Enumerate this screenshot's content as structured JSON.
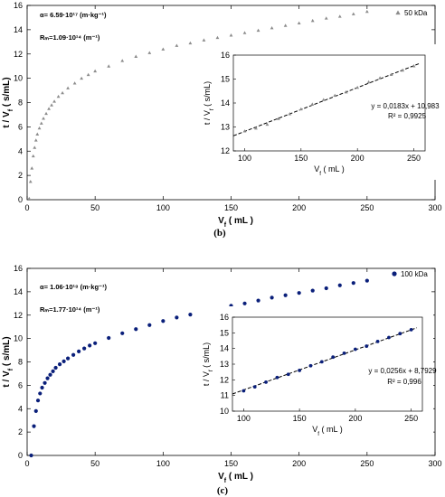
{
  "chart_data": [
    {
      "type": "scatter",
      "panel_label": "(b)",
      "color": "#8c8c8c",
      "marker": "triangle",
      "xlabel": "Vf ( mL )",
      "ylabel": "t / Vf ( s/mL)",
      "xlim": [
        0,
        300
      ],
      "ylim": [
        0,
        16
      ],
      "xticks": [
        0,
        50,
        100,
        150,
        200,
        250,
        300
      ],
      "yticks": [
        0,
        2,
        4,
        6,
        8,
        10,
        12,
        14,
        16
      ],
      "legend": {
        "label": "50 kDa",
        "position": "top-right"
      },
      "annotations": [
        "α= 6.59·10¹⁷ (m·kg⁻¹)",
        "Rₘ=1.09·10¹⁴ (m⁻¹)"
      ],
      "series": [
        {
          "name": "50 kDa",
          "x": [
            1.5,
            2.5,
            3.5,
            4.5,
            5.5,
            6.5,
            7.5,
            9,
            10.5,
            12,
            14,
            16,
            18,
            20,
            23,
            26,
            30,
            35,
            40,
            45,
            50,
            60,
            70,
            80,
            90,
            100,
            110,
            120,
            130,
            140,
            150,
            160,
            170,
            180,
            190,
            200,
            210,
            220,
            230,
            240,
            250
          ],
          "y": [
            0.1,
            1.5,
            2.6,
            3.6,
            4.3,
            4.9,
            5.4,
            5.9,
            6.3,
            6.7,
            7.1,
            7.5,
            7.8,
            8.1,
            8.5,
            8.8,
            9.2,
            9.6,
            10.0,
            10.3,
            10.6,
            11.0,
            11.45,
            11.8,
            12.1,
            12.4,
            12.7,
            12.9,
            13.15,
            13.35,
            13.55,
            13.75,
            13.95,
            14.15,
            14.35,
            14.55,
            14.75,
            14.95,
            15.1,
            15.3,
            15.5
          ]
        }
      ],
      "inset": {
        "type": "scatter",
        "xlabel": "Vf ( mL )",
        "ylabel": "t / Vf ( s/mL)",
        "xlim": [
          90,
          260
        ],
        "ylim": [
          12,
          16
        ],
        "xticks": [
          100,
          150,
          200,
          250
        ],
        "yticks": [
          12,
          13,
          14,
          15,
          16
        ],
        "equation": "y = 0,0183x + 10,983",
        "r2": "R² = 0,9925",
        "fit": {
          "slope": 0.0183,
          "intercept": 10.983
        },
        "x": [
          100,
          110,
          120,
          130,
          140,
          150,
          160,
          170,
          180,
          190,
          200,
          210,
          220,
          230,
          240,
          250
        ],
        "y": [
          12.83,
          12.95,
          13.11,
          13.35,
          13.55,
          13.75,
          13.95,
          14.14,
          14.32,
          14.46,
          14.65,
          14.88,
          15.05,
          15.19,
          15.37,
          15.55
        ]
      }
    },
    {
      "type": "scatter",
      "panel_label": "(c)",
      "color": "#0a1f7a",
      "marker": "circle",
      "xlabel": "Vf ( mL )",
      "ylabel": "t / Vf ( s/mL)",
      "xlim": [
        0,
        300
      ],
      "ylim": [
        0,
        16
      ],
      "xticks": [
        0,
        50,
        100,
        150,
        200,
        250,
        300
      ],
      "yticks": [
        0,
        2,
        4,
        6,
        8,
        10,
        12,
        14,
        16
      ],
      "legend": {
        "label": "100 kDa",
        "position": "top-right"
      },
      "annotations": [
        "α= 1.06·10¹⁸ (m·kg⁻¹)",
        "Rₘ=1.77·10¹⁴ (m⁻¹)"
      ],
      "series": [
        {
          "name": "100 kDa",
          "x": [
            3,
            5,
            6.5,
            8,
            9.5,
            11,
            13,
            15,
            17,
            19,
            21,
            24,
            27,
            30,
            34,
            38,
            42,
            46,
            50,
            60,
            70,
            80,
            90,
            100,
            110,
            120,
            130,
            140,
            150,
            160,
            170,
            180,
            190,
            200,
            210,
            220,
            230,
            240,
            250
          ],
          "y": [
            0.0,
            2.5,
            3.8,
            4.7,
            5.3,
            5.8,
            6.2,
            6.6,
            6.9,
            7.2,
            7.5,
            7.8,
            8.05,
            8.3,
            8.6,
            8.9,
            9.15,
            9.4,
            9.6,
            10.05,
            10.45,
            10.8,
            11.15,
            11.5,
            11.8,
            12.05,
            12.3,
            12.55,
            12.8,
            13.0,
            13.25,
            13.5,
            13.7,
            13.9,
            14.1,
            14.3,
            14.55,
            14.75,
            14.95
          ]
        }
      ],
      "inset": {
        "type": "scatter",
        "xlabel": "Vf ( mL )",
        "ylabel": "t / Vf ( s/mL)",
        "xlim": [
          90,
          260
        ],
        "ylim": [
          10,
          16
        ],
        "xticks": [
          100,
          150,
          200,
          250
        ],
        "yticks": [
          10,
          11,
          12,
          13,
          14,
          15,
          16
        ],
        "equation": "y = 0,0256x + 8,7929",
        "r2": "R² = 0,996",
        "fit": {
          "slope": 0.0256,
          "intercept": 8.7929
        },
        "x": [
          100,
          110,
          120,
          130,
          140,
          150,
          160,
          170,
          180,
          190,
          200,
          210,
          220,
          230,
          240,
          250
        ],
        "y": [
          11.3,
          11.55,
          11.85,
          12.15,
          12.35,
          12.6,
          12.9,
          13.15,
          13.45,
          13.7,
          13.95,
          14.15,
          14.45,
          14.7,
          14.95,
          15.2
        ]
      }
    }
  ]
}
